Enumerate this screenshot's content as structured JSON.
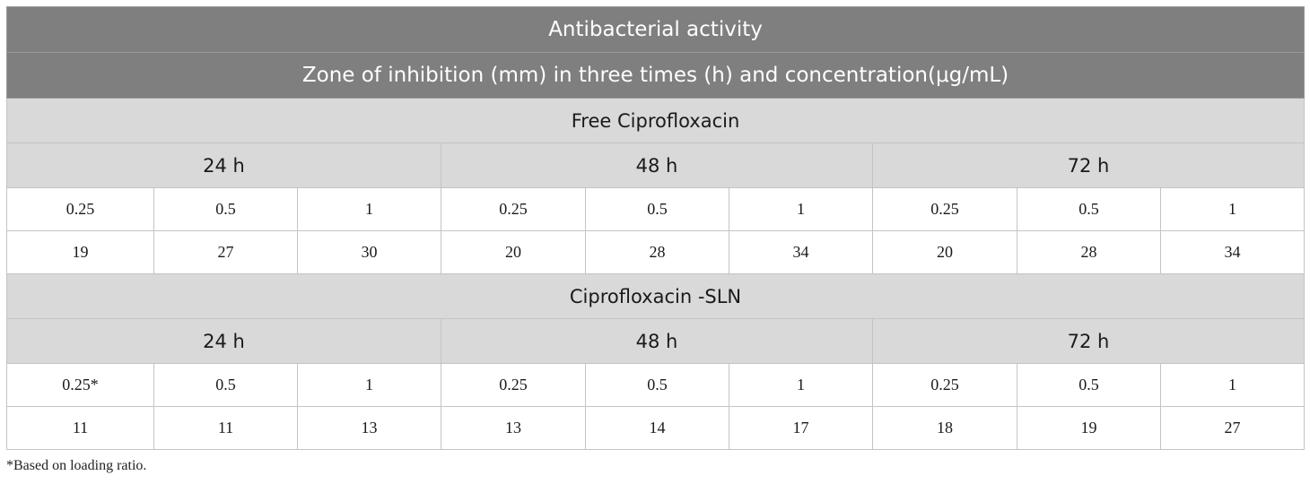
{
  "title": "Antibacterial activity",
  "subtitle": "Zone of inhibition (mm) in three times (h) and concentration(μg/mL)",
  "sections": [
    {
      "name": "Free Ciprofloxacin",
      "times": [
        "24 h",
        "48 h",
        "72 h"
      ],
      "concentrations": [
        "0.25",
        "0.5",
        "1",
        "0.25",
        "0.5",
        "1",
        "0.25",
        "0.5",
        "1"
      ],
      "values": [
        "19",
        "27",
        "30",
        "20",
        "28",
        "34",
        "20",
        "28",
        "34"
      ]
    },
    {
      "name": "Ciprofloxacin -SLN",
      "times": [
        "24 h",
        "48 h",
        "72 h"
      ],
      "concentrations": [
        "0.25*",
        "0.5",
        "1",
        "0.25",
        "0.5",
        "1",
        "0.25",
        "0.5",
        "1"
      ],
      "values": [
        "11",
        "11",
        "13",
        "13",
        "14",
        "17",
        "18",
        "19",
        "27"
      ]
    }
  ],
  "footnote": "*Based on loading ratio."
}
